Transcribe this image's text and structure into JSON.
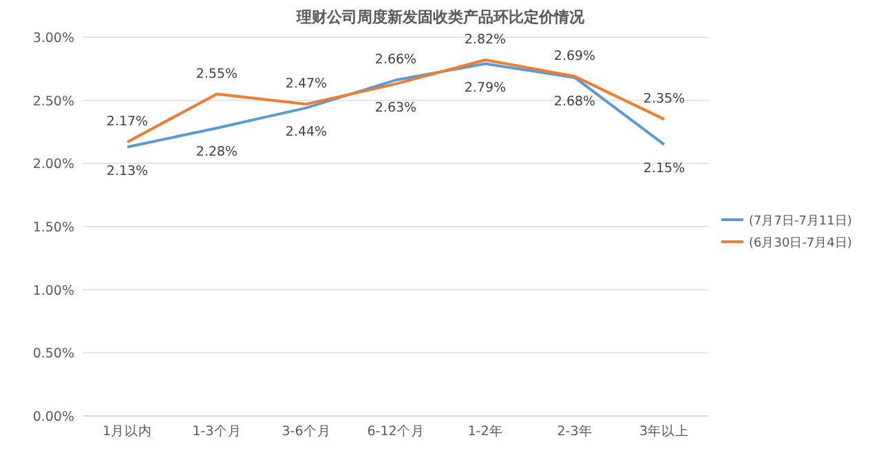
{
  "chart_data": {
    "type": "line",
    "title": "理财公司周度新发固收类产品环比定价情况",
    "categories": [
      "1月以内",
      "1-3个月",
      "3-6个月",
      "6-12个月",
      "1-2年",
      "2-3年",
      "3年以上"
    ],
    "series": [
      {
        "name": "(7月7日-7月11日)",
        "color": "#5b9bd5",
        "values": [
          2.13,
          2.28,
          2.44,
          2.66,
          2.79,
          2.68,
          2.15
        ],
        "value_labels": [
          "2.13%",
          "2.28%",
          "2.44%",
          "2.66%",
          "2.79%",
          "2.68%",
          "2.15%"
        ]
      },
      {
        "name": "(6月30日-7月4日)",
        "color": "#ed7d31",
        "values": [
          2.17,
          2.55,
          2.47,
          2.63,
          2.82,
          2.69,
          2.35
        ],
        "value_labels": [
          "2.17%",
          "2.55%",
          "2.47%",
          "2.63%",
          "2.82%",
          "2.69%",
          "2.35%"
        ]
      }
    ],
    "ylim": [
      0,
      3
    ],
    "yticks": [
      {
        "value": 0,
        "label": "0.00%"
      },
      {
        "value": 0.5,
        "label": "0.50%"
      },
      {
        "value": 1,
        "label": "1.00%"
      },
      {
        "value": 1.5,
        "label": "1.50%"
      },
      {
        "value": 2,
        "label": "2.00%"
      },
      {
        "value": 2.5,
        "label": "2.50%"
      },
      {
        "value": 3,
        "label": "3.00%"
      }
    ],
    "grid": "y",
    "legend": "right",
    "marker": "none"
  }
}
